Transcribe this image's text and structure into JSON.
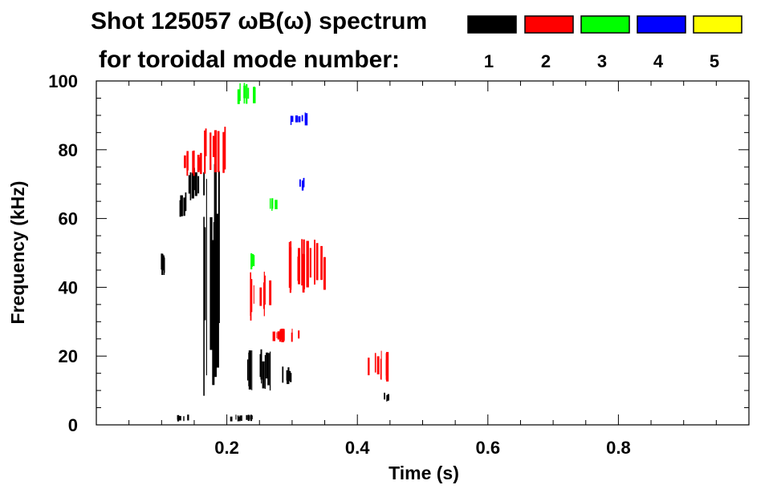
{
  "chart_data": {
    "type": "spectrogram",
    "title_line1": "Shot 125057 ωB(ω) spectrum",
    "title_line2": "for toroidal mode number:",
    "xlabel": "Time (s)",
    "ylabel": "Frequency (kHz)",
    "xlim": [
      0.0,
      1.0
    ],
    "ylim": [
      0,
      100
    ],
    "x_ticks": [
      0.2,
      0.4,
      0.6,
      0.8
    ],
    "x_tick_labels": [
      "0.2",
      "0.4",
      "0.6",
      "0.8"
    ],
    "y_ticks": [
      0,
      20,
      40,
      60,
      80,
      100
    ],
    "y_tick_labels": [
      "0",
      "20",
      "40",
      "60",
      "80",
      "100"
    ],
    "legend": [
      {
        "n": "1",
        "color": "#000000"
      },
      {
        "n": "2",
        "color": "#ff0000"
      },
      {
        "n": "3",
        "color": "#00ff00"
      },
      {
        "n": "4",
        "color": "#0000ff"
      },
      {
        "n": "5",
        "color": "#ffff00"
      }
    ],
    "patches": [
      {
        "mode": "1",
        "t": [
          0.09,
          0.11
        ],
        "f": [
          43,
          50
        ]
      },
      {
        "mode": "1",
        "t": [
          0.125,
          0.145
        ],
        "f": [
          60,
          68
        ]
      },
      {
        "mode": "1",
        "t": [
          0.14,
          0.165
        ],
        "f": [
          65,
          75
        ]
      },
      {
        "mode": "1",
        "t": [
          0.16,
          0.175
        ],
        "f": [
          5,
          80
        ]
      },
      {
        "mode": "1",
        "t": [
          0.175,
          0.195
        ],
        "f": [
          5,
          76
        ]
      },
      {
        "mode": "1",
        "t": [
          0.23,
          0.275
        ],
        "f": [
          10,
          22
        ]
      },
      {
        "mode": "1",
        "t": [
          0.28,
          0.305
        ],
        "f": [
          11,
          17
        ]
      },
      {
        "mode": "1",
        "t": [
          0.44,
          0.45
        ],
        "f": [
          6,
          10
        ]
      },
      {
        "mode": "1",
        "t": [
          0.12,
          0.14
        ],
        "f": [
          1,
          3
        ]
      },
      {
        "mode": "1",
        "t": [
          0.2,
          0.24
        ],
        "f": [
          1,
          3
        ]
      },
      {
        "mode": "2",
        "t": [
          0.13,
          0.16
        ],
        "f": [
          72,
          80
        ]
      },
      {
        "mode": "2",
        "t": [
          0.165,
          0.2
        ],
        "f": [
          73,
          88
        ]
      },
      {
        "mode": "2",
        "t": [
          0.235,
          0.27
        ],
        "f": [
          30,
          45
        ]
      },
      {
        "mode": "2",
        "t": [
          0.29,
          0.35
        ],
        "f": [
          38,
          54
        ]
      },
      {
        "mode": "2",
        "t": [
          0.27,
          0.315
        ],
        "f": [
          24,
          28
        ]
      },
      {
        "mode": "2",
        "t": [
          0.415,
          0.445
        ],
        "f": [
          12,
          22
        ]
      },
      {
        "mode": "3",
        "t": [
          0.215,
          0.245
        ],
        "f": [
          93,
          100
        ]
      },
      {
        "mode": "3",
        "t": [
          0.265,
          0.275
        ],
        "f": [
          62,
          66
        ]
      },
      {
        "mode": "3",
        "t": [
          0.235,
          0.24
        ],
        "f": [
          45,
          50
        ]
      },
      {
        "mode": "4",
        "t": [
          0.295,
          0.32
        ],
        "f": [
          87,
          91
        ]
      },
      {
        "mode": "4",
        "t": [
          0.31,
          0.32
        ],
        "f": [
          68,
          72
        ]
      }
    ]
  }
}
